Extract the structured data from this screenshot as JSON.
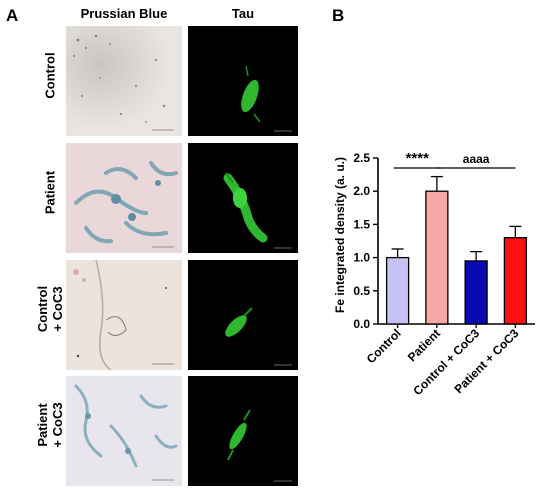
{
  "panels": {
    "a": "A",
    "b": "B"
  },
  "columns": {
    "prussian_blue": "Prussian Blue",
    "tau": "Tau"
  },
  "rows": [
    {
      "line1": "Control",
      "line2": ""
    },
    {
      "line1": "Patient",
      "line2": ""
    },
    {
      "line1": "Control",
      "line2": "+ CoC3"
    },
    {
      "line1": "Patient",
      "line2": "+ CoC3"
    }
  ],
  "colors": {
    "control": "#c6c3f4",
    "patient": "#f6a7a7",
    "control_coc3": "#0a0ab4",
    "patient_coc3": "#ff1010",
    "tau_green": "#3fd43f",
    "prussian_blue_stain": "#6e9fb0"
  },
  "chart_data": {
    "type": "bar",
    "categories": [
      "Control",
      "Patient",
      "Control + CoC3",
      "Patient + CoC3"
    ],
    "values": [
      1.0,
      2.0,
      0.95,
      1.3
    ],
    "errors": [
      0.13,
      0.22,
      0.14,
      0.17
    ],
    "bar_colors": [
      "#c6c3f4",
      "#f6a7a7",
      "#0a0ab4",
      "#ff1010"
    ],
    "ylabel": "Fe integrated density (a. u.)",
    "ylim": [
      0,
      2.5
    ],
    "yticks": [
      "0.0",
      "0.5",
      "1.0",
      "1.5",
      "2.0",
      "2.5"
    ],
    "grid": false,
    "annotations": [
      {
        "text": "****",
        "from": "Control",
        "to": "Patient"
      },
      {
        "text": "aaaa",
        "from": "Patient",
        "to": "Patient + CoC3"
      }
    ]
  }
}
